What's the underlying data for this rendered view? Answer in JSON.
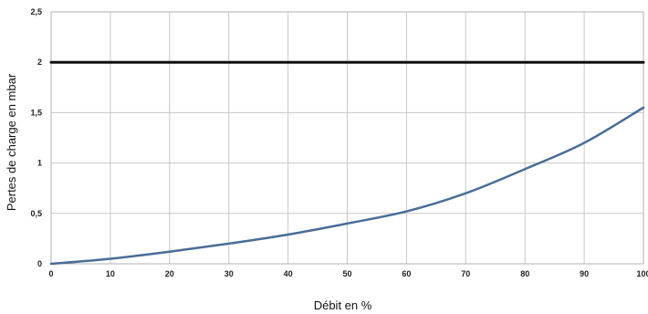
{
  "chart_data": {
    "type": "line",
    "title": "",
    "xlabel": "Débit en %",
    "ylabel": "Pertes de charge en mbar",
    "xlim": [
      0,
      100
    ],
    "ylim": [
      0,
      2.5
    ],
    "x_ticks": [
      "0",
      "10",
      "20",
      "30",
      "40",
      "50",
      "60",
      "70",
      "80",
      "90",
      "100"
    ],
    "y_ticks": [
      "0",
      "0,5",
      "1",
      "1,5",
      "2",
      "2,5"
    ],
    "grid": true,
    "series": [
      {
        "color": "#4a6c96",
        "x": [
          0,
          10,
          20,
          30,
          40,
          50,
          60,
          70,
          80,
          90,
          100
        ],
        "y": [
          0,
          0.05,
          0.12,
          0.2,
          0.29,
          0.4,
          0.52,
          0.7,
          0.94,
          1.2,
          1.55
        ]
      },
      {
        "color": "#111111",
        "x": [
          0,
          100
        ],
        "y": [
          2,
          2
        ]
      }
    ]
  }
}
